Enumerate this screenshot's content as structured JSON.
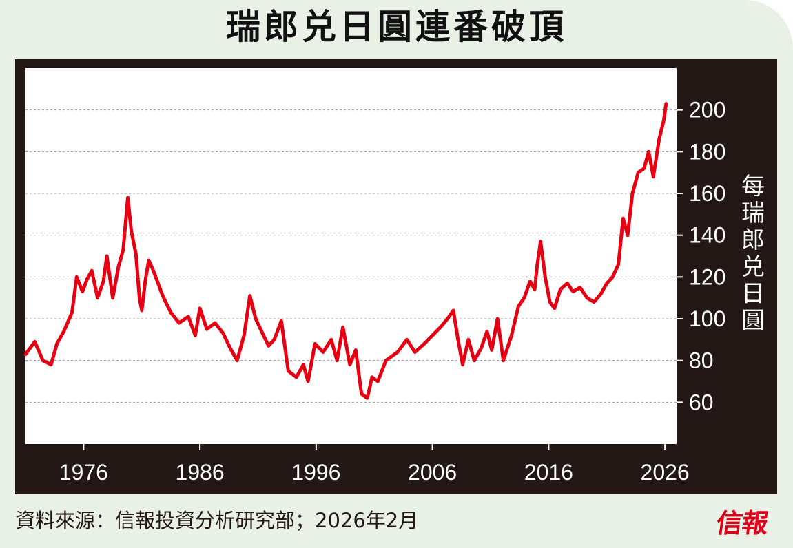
{
  "title": "瑞郎兑日圓連番破頂",
  "source": "資料來源：信報投資分析研究部；2026年2月",
  "logo_text": "信報",
  "colors": {
    "line": "#e60012",
    "frame": "#231815",
    "background": "#e9f1e6",
    "grid": "#999999"
  },
  "chart_data": {
    "type": "line",
    "title": "瑞郎兑日圓連番破頂",
    "ylabel": "每瑞郎兑日圓",
    "xlabel": "",
    "x_ticks": [
      "1976",
      "1986",
      "1996",
      "2006",
      "2016",
      "2026"
    ],
    "y_ticks": [
      "60",
      "80",
      "100",
      "120",
      "140",
      "160",
      "180",
      "200"
    ],
    "xlim": [
      1971,
      2027
    ],
    "ylim": [
      40,
      220
    ],
    "y_axis_position": "right",
    "grid": "horizontal dashed",
    "series": [
      {
        "x": [
          1971.0,
          1971.8,
          1972.5,
          1973.2,
          1973.7,
          1974.3,
          1975.0,
          1975.4,
          1975.9,
          1976.3,
          1976.7,
          1977.2,
          1977.7,
          1978.0,
          1978.5,
          1979.0,
          1979.4,
          1979.8,
          1980.1,
          1980.5,
          1980.8,
          1981.0,
          1981.3,
          1981.6,
          1982.0,
          1982.4,
          1982.8,
          1983.5,
          1984.2,
          1985.0,
          1985.6,
          1986.0,
          1986.6,
          1987.3,
          1988.0,
          1988.6,
          1989.2,
          1989.8,
          1990.3,
          1990.8,
          1991.3,
          1991.9,
          1992.4,
          1993.0,
          1993.6,
          1994.3,
          1994.9,
          1995.3,
          1995.9,
          1996.6,
          1997.3,
          1997.8,
          1998.3,
          1998.9,
          1999.4,
          1999.9,
          2000.4,
          2000.8,
          2001.3,
          2002.0,
          2003.0,
          2003.8,
          2004.5,
          2005.3,
          2006.0,
          2006.7,
          2007.3,
          2007.8,
          2008.2,
          2008.6,
          2009.1,
          2009.6,
          2010.2,
          2010.7,
          2011.1,
          2011.6,
          2012.1,
          2012.8,
          2013.4,
          2013.9,
          2014.4,
          2014.8,
          2015.0,
          2015.3,
          2015.7,
          2016.1,
          2016.5,
          2017.0,
          2017.6,
          2018.1,
          2018.7,
          2019.3,
          2019.9,
          2020.5,
          2021.0,
          2021.5,
          2022.0,
          2022.4,
          2022.8,
          2023.2,
          2023.7,
          2024.2,
          2024.6,
          2025.0,
          2025.5,
          2025.9,
          2026.1
        ],
        "y": [
          83,
          89,
          80,
          78,
          88,
          94,
          103,
          120,
          113,
          119,
          123,
          110,
          118,
          130,
          110,
          125,
          133,
          158,
          142,
          131,
          110,
          104,
          118,
          128,
          123,
          117,
          111,
          103,
          98,
          101,
          92,
          105,
          95,
          98,
          93,
          86,
          80,
          92,
          111,
          100,
          94,
          87,
          90,
          99,
          75,
          72,
          78,
          70,
          88,
          84,
          90,
          80,
          96,
          78,
          85,
          64,
          62,
          72,
          70,
          80,
          84,
          90,
          84,
          88,
          92,
          96,
          100,
          104,
          90,
          78,
          90,
          80,
          86,
          94,
          85,
          100,
          80,
          92,
          106,
          110,
          118,
          114,
          125,
          137,
          120,
          108,
          105,
          114,
          117,
          113,
          115,
          110,
          108,
          112,
          117,
          120,
          126,
          148,
          140,
          160,
          170,
          172,
          180,
          168,
          186,
          195,
          203
        ]
      }
    ]
  }
}
